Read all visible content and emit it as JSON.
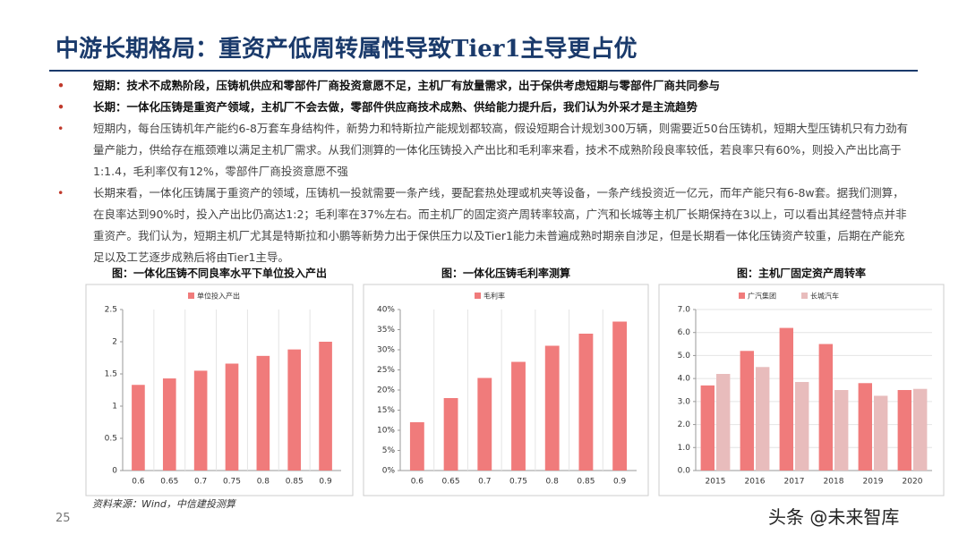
{
  "header": {
    "title": "中游长期格局：重资产低周转属性导致Tier1主导更占优"
  },
  "bullets": [
    "短期：技术不成熟阶段，压铸机供应和零部件厂商投资意愿不足，主机厂有放量需求，出于保供考虑短期与零部件厂商共同参与",
    "长期：一体化压铸是重资产领域，主机厂不会去做，零部件供应商技术成熟、供给能力提升后，我们认为外采才是主流趋势",
    "短期内，每台压铸机年产能约6-8万套车身结构件，新势力和特斯拉产能规划都较高，假设短期合计规划300万辆，则需要近50台压铸机，短期大型压铸机只有力劲有量产能力，供给存在瓶颈难以满足主机厂需求。从我们测算的一体化压铸投入产出比和毛利率来看，技术不成熟阶段良率较低，若良率只有60%，则投入产出比高于1:1.4，毛利率仅有12%，零部件厂商投资意愿不强",
    "长期来看，一体化压铸属于重资产的领域，压铸机一投就需要一条产线，要配套热处理或机夹等设备，一条产线投资近一亿元，而年产能只有6-8w套。据我们测算，在良率达到90%时，投入产出比仍高达1:2；毛利率在37%左右。而主机厂的固定资产周转率较高，广汽和长城等主机厂长期保持在3以上，可以看出其经营特点并非重资产。我们认为，短期主机厂尤其是特斯拉和小鹏等新势力出于保供压力以及Tier1能力未普遍成熟时期亲自涉足，但是长期看一体化压铸资产较重，后期在产能充足以及工艺逐步成熟后将由Tier1主导。"
  ],
  "chart_data": [
    {
      "type": "bar",
      "title": "图：一体化压铸不同良率水平下单位投入产出",
      "categories": [
        "0.6",
        "0.65",
        "0.7",
        "0.75",
        "0.8",
        "0.85",
        "0.9"
      ],
      "series": [
        {
          "name": "单位投入产出",
          "color": "#f07b7b",
          "values": [
            1.33,
            1.43,
            1.55,
            1.66,
            1.78,
            1.88,
            2.0
          ]
        }
      ],
      "ylim": [
        0,
        2.5
      ],
      "yticks": [
        0,
        0.5,
        1,
        1.5,
        2,
        2.5
      ],
      "grid": false
    },
    {
      "type": "bar",
      "title": "图：一体化压铸毛利率测算",
      "categories": [
        "0.6",
        "0.65",
        "0.7",
        "0.75",
        "0.8",
        "0.85",
        "0.9"
      ],
      "series": [
        {
          "name": "毛利率",
          "color": "#f07b7b",
          "values": [
            12,
            18,
            23,
            27,
            31,
            34,
            37
          ]
        }
      ],
      "ylim": [
        0,
        40
      ],
      "yticks": [
        {
          "value": 0,
          "label": "0%"
        },
        {
          "value": 5,
          "label": "5%"
        },
        {
          "value": 10,
          "label": "10%"
        },
        {
          "value": 15,
          "label": "15%"
        },
        {
          "value": 20,
          "label": "20%"
        },
        {
          "value": 25,
          "label": "25%"
        },
        {
          "value": 30,
          "label": "30%"
        },
        {
          "value": 35,
          "label": "35%"
        },
        {
          "value": 40,
          "label": "40%"
        }
      ],
      "grid": false
    },
    {
      "type": "bar",
      "title": "图：主机厂固定资产周转率",
      "categories": [
        "2015",
        "2016",
        "2017",
        "2018",
        "2019",
        "2020"
      ],
      "series": [
        {
          "name": "广汽集团",
          "color": "#f07b7b",
          "values": [
            3.7,
            5.2,
            6.2,
            5.5,
            3.8,
            3.5
          ]
        },
        {
          "name": "长城汽车",
          "color": "#e8bcbc",
          "values": [
            4.2,
            4.5,
            3.85,
            3.5,
            3.25,
            3.55
          ]
        }
      ],
      "ylim": [
        0,
        7
      ],
      "yticks": [
        {
          "value": 0,
          "label": "0.0"
        },
        {
          "value": 1,
          "label": "1.0"
        },
        {
          "value": 2,
          "label": "2.0"
        },
        {
          "value": 3,
          "label": "3.0"
        },
        {
          "value": 4,
          "label": "4.0"
        },
        {
          "value": 5,
          "label": "5.0"
        },
        {
          "value": 6,
          "label": "6.0"
        },
        {
          "value": 7,
          "label": "7.0"
        }
      ],
      "grid": true
    }
  ],
  "source": "资料来源：Wind，中信建投测算",
  "page_number": "25",
  "watermark": "头条 @未来智库"
}
